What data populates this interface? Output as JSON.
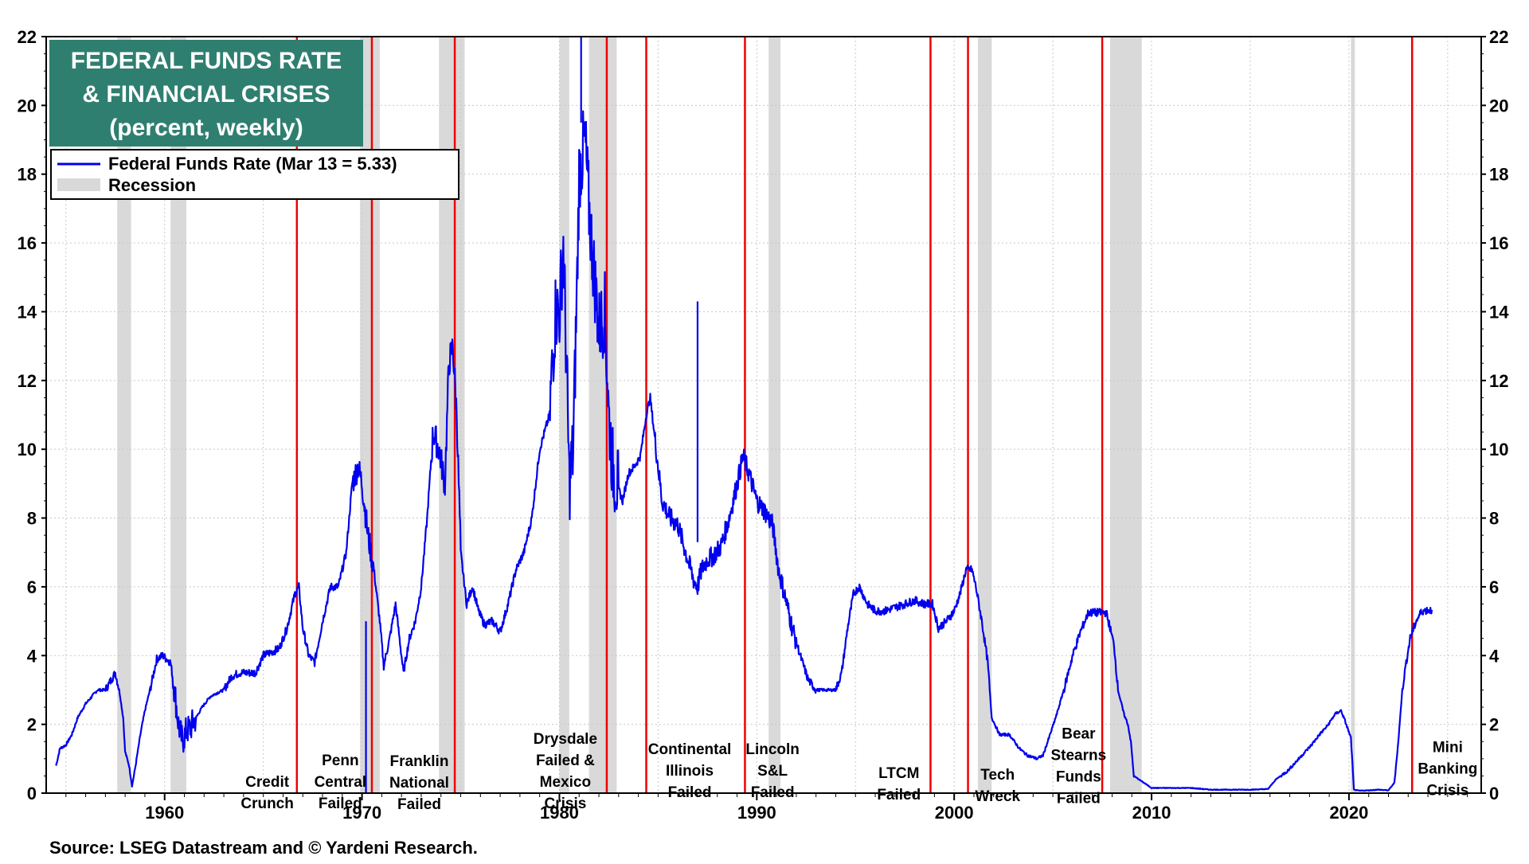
{
  "chart_data": {
    "type": "line",
    "title_lines": [
      "FEDERAL FUNDS RATE",
      "& FINANCIAL CRISES",
      "(percent, weekly)"
    ],
    "legend": {
      "placement": "top-left",
      "entries": [
        {
          "label": "Federal Funds Rate (Mar 13 = 5.33)",
          "kind": "line",
          "color": "#0000ee"
        },
        {
          "label": "Recession",
          "kind": "area",
          "color": "#d9d9d9"
        }
      ]
    },
    "source": "Source: LSEG Datastream and © Yardeni Research.",
    "xlim": [
      1954.0,
      2026.7
    ],
    "ylim": [
      0,
      22
    ],
    "x_ticks": [
      1960,
      1970,
      1980,
      1990,
      2000,
      2010,
      2020
    ],
    "y_ticks": [
      0,
      2,
      4,
      6,
      8,
      10,
      12,
      14,
      16,
      18,
      20,
      22
    ],
    "grid": true,
    "colors": {
      "series": "#0000ee",
      "crisis_line": "#ee0000",
      "recession": "#d9d9d9",
      "title_bg": "#2f7f70"
    },
    "recessions": [
      [
        1957.6,
        1958.3
      ],
      [
        1960.3,
        1961.1
      ],
      [
        1969.9,
        1970.9
      ],
      [
        1973.9,
        1975.2
      ],
      [
        1980.0,
        1980.5
      ],
      [
        1981.5,
        1982.9
      ],
      [
        1990.6,
        1991.2
      ],
      [
        2001.2,
        2001.9
      ],
      [
        2007.9,
        2009.5
      ],
      [
        2020.1,
        2020.3
      ]
    ],
    "crises": [
      {
        "x": 1966.7,
        "label": [
          "Credit",
          "Crunch"
        ],
        "label_x": 1965.2,
        "label_top": 0.7
      },
      {
        "x": 1970.5,
        "label": [
          "Penn",
          "Central",
          "Failed"
        ],
        "label_x": 1968.9,
        "label_top": 1.32
      },
      {
        "x": 1974.7,
        "label": [
          "Franklin",
          "National",
          "Failed"
        ],
        "label_x": 1972.9,
        "label_top": 1.3
      },
      {
        "x": 1982.4,
        "label": [
          "Drysdale",
          "Failed &",
          "Mexico",
          "Crisis"
        ],
        "label_x": 1980.3,
        "label_top": 1.95
      },
      {
        "x": 1984.4,
        "label": [
          "Continental",
          "Illinois",
          "Failed"
        ],
        "label_x": 1986.6,
        "label_top": 1.65
      },
      {
        "x": 1989.4,
        "label": [
          "Lincoln",
          "S&L",
          "Failed"
        ],
        "label_x": 1990.8,
        "label_top": 1.65
      },
      {
        "x": 1998.8,
        "label": [
          "LTCM",
          "Failed"
        ],
        "label_x": 1997.2,
        "label_top": 0.95
      },
      {
        "x": 2000.7,
        "label": [
          "Tech",
          "Wreck"
        ],
        "label_x": 2002.2,
        "label_top": 0.9
      },
      {
        "x": 2007.5,
        "label": [
          "Bear",
          "Stearns",
          "Funds",
          "Failed"
        ],
        "label_x": 2006.3,
        "label_top": 2.1
      },
      {
        "x": 2023.2,
        "label": [
          "Mini",
          "Banking",
          "Crisis"
        ],
        "label_x": 2025.0,
        "label_top": 1.7
      }
    ],
    "series": [
      {
        "name": "Federal Funds Rate",
        "x": [
          1954.5,
          1954.7,
          1955.0,
          1955.3,
          1955.6,
          1956.0,
          1956.3,
          1956.6,
          1957.0,
          1957.5,
          1957.7,
          1957.9,
          1958.0,
          1958.2,
          1958.35,
          1958.5,
          1958.8,
          1959.0,
          1959.3,
          1959.6,
          1959.9,
          1960.3,
          1960.5,
          1960.7,
          1960.9,
          1961.1,
          1961.3,
          1961.6,
          1961.9,
          1962.3,
          1962.6,
          1963.0,
          1963.4,
          1963.8,
          1964.2,
          1964.6,
          1965.0,
          1965.4,
          1965.8,
          1966.2,
          1966.6,
          1966.8,
          1967.0,
          1967.3,
          1967.6,
          1968.0,
          1968.4,
          1968.8,
          1969.2,
          1969.5,
          1969.8,
          1970.0,
          1970.3,
          1970.6,
          1970.9,
          1971.1,
          1971.4,
          1971.7,
          1971.9,
          1972.1,
          1972.4,
          1972.7,
          1973.0,
          1973.3,
          1973.6,
          1973.9,
          1974.2,
          1974.4,
          1974.6,
          1974.8,
          1975.0,
          1975.3,
          1975.6,
          1975.9,
          1976.2,
          1976.6,
          1977.0,
          1977.4,
          1977.8,
          1978.2,
          1978.6,
          1979.0,
          1979.5,
          1979.8,
          1980.0,
          1980.2,
          1980.4,
          1980.5,
          1980.7,
          1980.9,
          1981.0,
          1981.3,
          1981.5,
          1981.7,
          1982.0,
          1982.3,
          1982.5,
          1982.7,
          1982.9,
          1983.2,
          1983.5,
          1983.8,
          1984.1,
          1984.4,
          1984.6,
          1984.9,
          1985.2,
          1985.6,
          1986.0,
          1986.4,
          1986.8,
          1987.0,
          1987.2,
          1987.5,
          1987.8,
          1988.2,
          1988.6,
          1989.0,
          1989.3,
          1989.6,
          1990.0,
          1990.4,
          1990.8,
          1991.1,
          1991.4,
          1991.8,
          1992.2,
          1992.6,
          1993.0,
          1993.5,
          1994.0,
          1994.3,
          1994.6,
          1994.9,
          1995.2,
          1995.6,
          1996.0,
          1996.5,
          1997.0,
          1997.5,
          1998.0,
          1998.5,
          1998.9,
          1999.2,
          1999.6,
          2000.0,
          2000.3,
          2000.6,
          2000.9,
          2001.1,
          2001.4,
          2001.7,
          2001.9,
          2002.3,
          2002.8,
          2003.3,
          2003.7,
          2004.2,
          2004.5,
          2004.8,
          2005.2,
          2005.6,
          2006.0,
          2006.4,
          2006.8,
          2007.3,
          2007.7,
          2007.9,
          2008.1,
          2008.3,
          2008.6,
          2008.8,
          2008.95,
          2009.1,
          2010.0,
          2011.0,
          2012.0,
          2013.0,
          2014.0,
          2015.0,
          2015.9,
          2016.3,
          2016.9,
          2017.3,
          2017.7,
          2018.1,
          2018.5,
          2018.9,
          2019.3,
          2019.6,
          2019.8,
          2020.1,
          2020.25,
          2020.5,
          2021.0,
          2021.5,
          2022.0,
          2022.3,
          2022.5,
          2022.7,
          2022.9,
          2023.1,
          2023.4,
          2023.7,
          2024.2
        ],
        "y": [
          0.8,
          1.3,
          1.4,
          1.7,
          2.2,
          2.6,
          2.8,
          3.0,
          3.0,
          3.5,
          3.0,
          2.2,
          1.2,
          0.8,
          0.2,
          0.7,
          1.8,
          2.4,
          3.1,
          3.9,
          4.0,
          3.8,
          3.0,
          2.0,
          1.5,
          1.8,
          1.9,
          2.2,
          2.5,
          2.8,
          2.9,
          3.0,
          3.4,
          3.5,
          3.5,
          3.5,
          4.0,
          4.1,
          4.2,
          4.8,
          5.8,
          6.0,
          4.8,
          4.0,
          3.8,
          5.0,
          6.0,
          6.0,
          7.0,
          9.0,
          9.5,
          9.0,
          7.5,
          6.5,
          5.0,
          3.7,
          4.5,
          5.5,
          4.5,
          3.5,
          4.5,
          5.0,
          6.0,
          8.0,
          10.5,
          10.0,
          9.0,
          12.5,
          13.0,
          11.0,
          7.0,
          5.5,
          6.0,
          5.3,
          4.9,
          5.0,
          4.7,
          5.5,
          6.5,
          7.0,
          8.0,
          10.0,
          11.0,
          14.0,
          14.0,
          16.0,
          11.5,
          9.0,
          10.0,
          15.0,
          18.0,
          19.0,
          17.0,
          15.5,
          13.5,
          14.0,
          11.0,
          9.5,
          9.0,
          8.5,
          9.3,
          9.5,
          9.8,
          11.0,
          11.5,
          10.0,
          8.5,
          8.0,
          7.8,
          7.0,
          6.2,
          6.0,
          6.5,
          6.8,
          6.9,
          7.2,
          8.0,
          9.0,
          9.8,
          9.3,
          8.5,
          8.2,
          7.8,
          6.5,
          5.8,
          4.8,
          4.0,
          3.3,
          3.0,
          3.0,
          3.0,
          3.5,
          4.8,
          5.8,
          6.0,
          5.5,
          5.3,
          5.3,
          5.4,
          5.5,
          5.6,
          5.5,
          5.5,
          4.8,
          5.0,
          5.3,
          5.8,
          6.5,
          6.5,
          6.0,
          5.0,
          3.8,
          2.2,
          1.7,
          1.7,
          1.3,
          1.1,
          1.0,
          1.1,
          1.6,
          2.3,
          3.1,
          4.0,
          4.7,
          5.25,
          5.25,
          5.25,
          4.8,
          4.3,
          3.0,
          2.3,
          2.0,
          1.5,
          0.5,
          0.15,
          0.15,
          0.15,
          0.1,
          0.1,
          0.1,
          0.12,
          0.4,
          0.65,
          0.9,
          1.15,
          1.4,
          1.7,
          1.95,
          2.3,
          2.4,
          2.1,
          1.6,
          0.1,
          0.07,
          0.08,
          0.1,
          0.08,
          0.3,
          1.5,
          3.0,
          3.8,
          4.5,
          5.0,
          5.3,
          5.33
        ]
      }
    ],
    "spikes": [
      {
        "x": 1987.0,
        "y": 14.3
      },
      {
        "x": 1970.2,
        "y": 5.0
      },
      {
        "x": 1981.1,
        "y": 22.0
      }
    ]
  }
}
